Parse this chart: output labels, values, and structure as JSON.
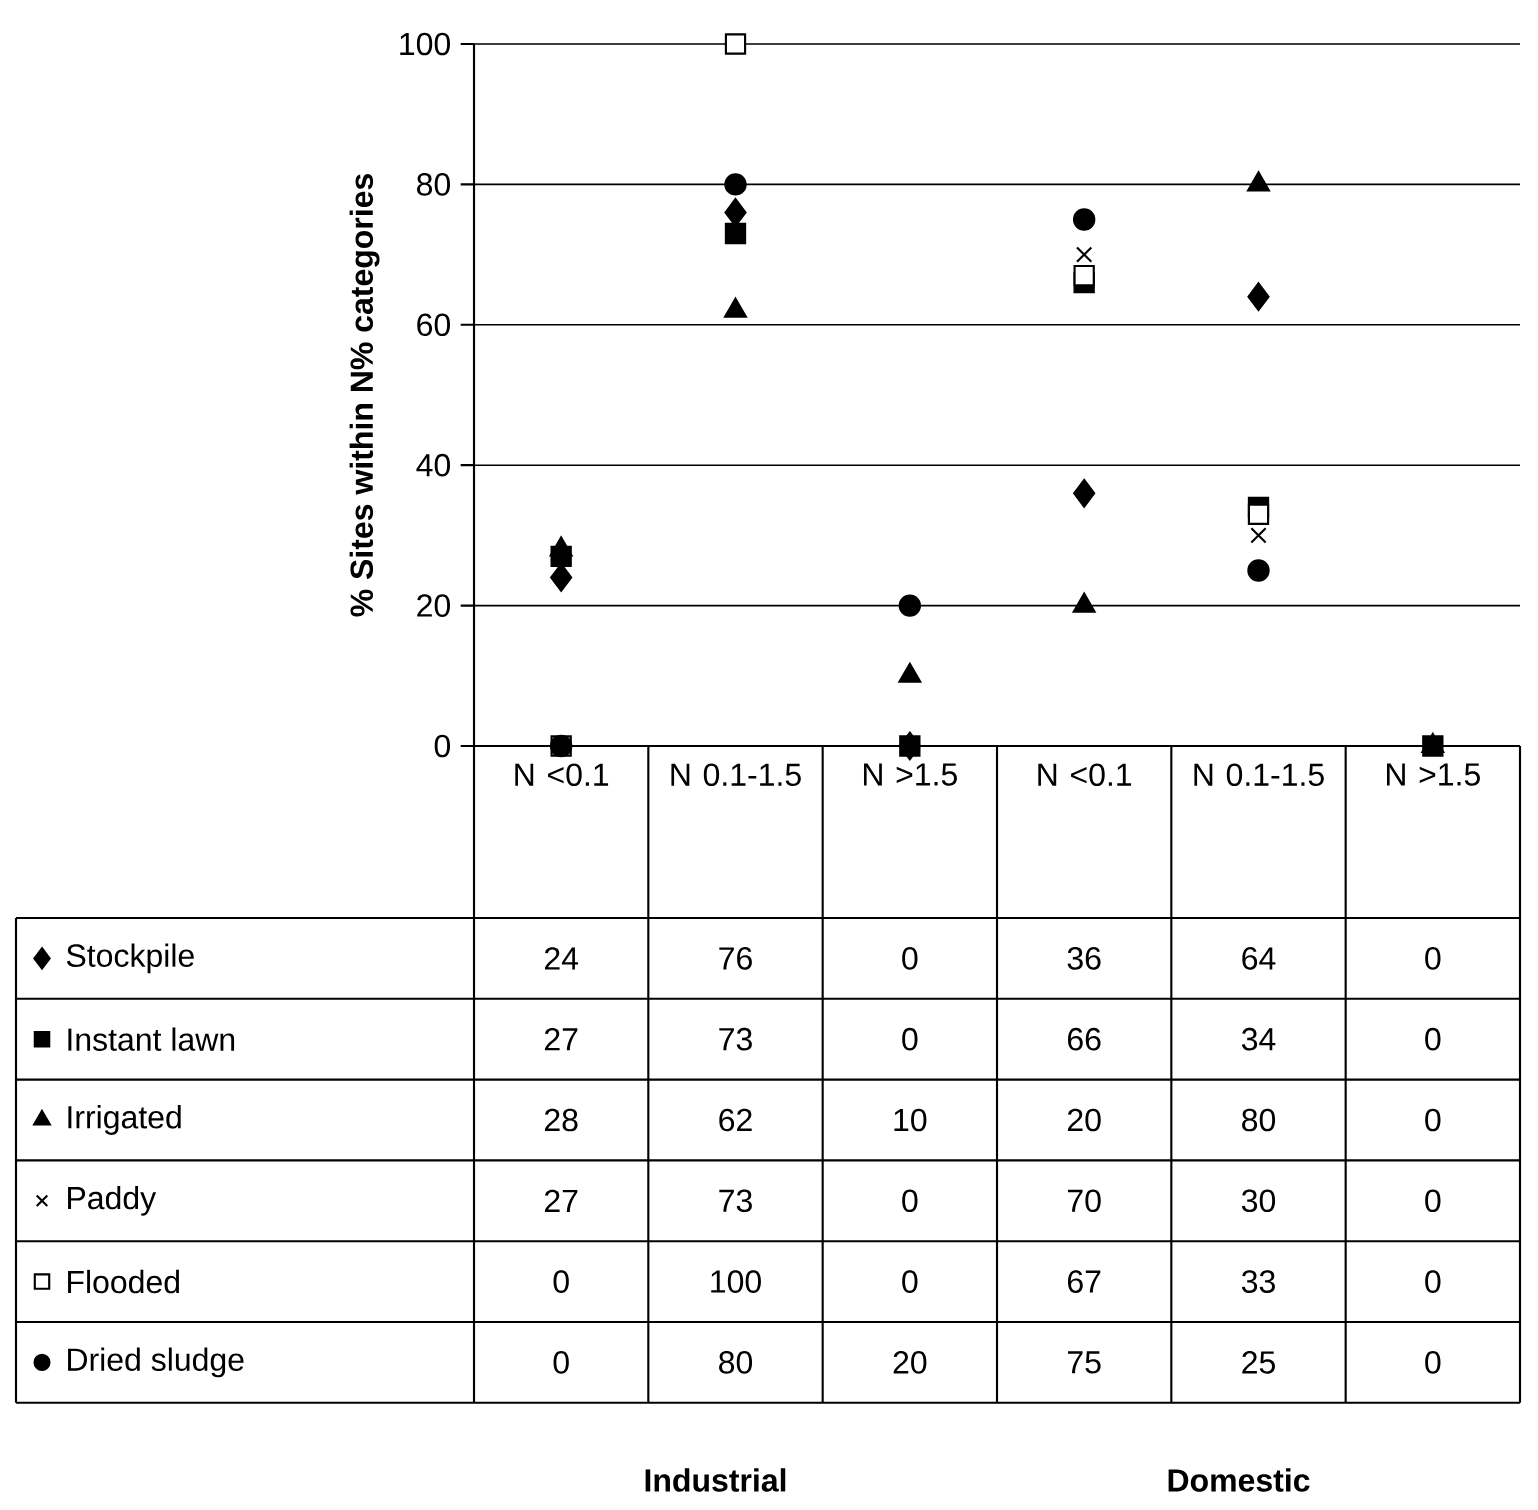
{
  "chart_data": {
    "type": "scatter",
    "ylabel": "% Sites within N% categories",
    "categories": [
      "N <0.1",
      "N 0.1-1.5",
      "N >1.5",
      "N <0.1",
      "N 0.1-1.5",
      "N >1.5"
    ],
    "series": [
      {
        "name": "Stockpile",
        "color": "#000000",
        "marker": "diamond",
        "values": [
          24,
          76,
          0,
          36,
          64,
          null
        ],
        "value_labels": [
          "24",
          "76",
          "0",
          "36",
          "64",
          "0"
        ]
      },
      {
        "name": "Instant lawn",
        "color": "#000000",
        "marker": "square",
        "values": [
          27,
          73,
          0,
          66,
          34,
          0
        ],
        "value_labels": [
          "27",
          "73",
          "0",
          "66",
          "34",
          "0"
        ]
      },
      {
        "name": "Irrigated",
        "color": "#000000",
        "marker": "triangle",
        "values": [
          28,
          62,
          10,
          20,
          80,
          0
        ],
        "value_labels": [
          "28",
          "62",
          "10",
          "20",
          "80",
          "0"
        ]
      },
      {
        "name": "Paddy",
        "color": "#000000",
        "marker": "cross",
        "values": [
          null,
          null,
          null,
          70,
          30,
          null
        ],
        "value_labels": [
          "27",
          "73",
          "0",
          "70",
          "30",
          "0"
        ]
      },
      {
        "name": "Flooded",
        "color": "#ffffff",
        "marker": "square",
        "values": [
          0,
          100,
          null,
          67,
          33,
          null
        ],
        "value_labels": [
          "0",
          "100",
          "0",
          "67",
          "33",
          "0"
        ]
      },
      {
        "name": "Dried sludge",
        "color": "#000000",
        "marker": "circle",
        "values": [
          0,
          80,
          20,
          75,
          25,
          null
        ],
        "value_labels": [
          "0",
          "80",
          "20",
          "75",
          "25",
          "0"
        ]
      }
    ],
    "ylim": [
      0,
      100
    ],
    "yticks": [
      0,
      20,
      40,
      60,
      80,
      100
    ],
    "grid": "y",
    "legend": "bottom left",
    "annotations": [
      "Industrial",
      "Domestic"
    ]
  }
}
